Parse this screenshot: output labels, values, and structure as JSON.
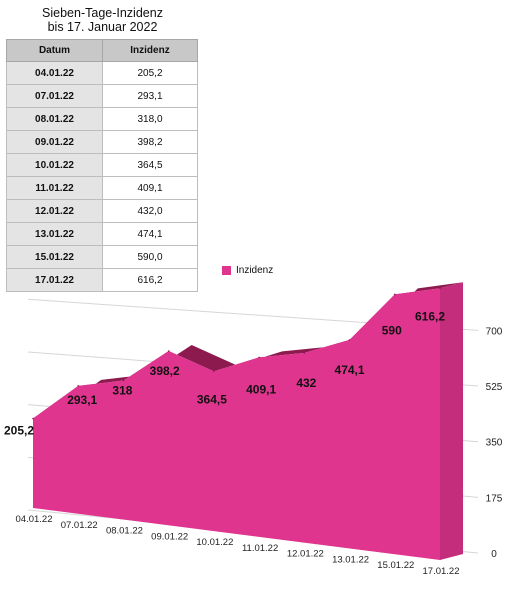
{
  "title_line1": "Sieben-Tage-Inzidenz",
  "title_line2": "bis 17. Januar 2022",
  "table": {
    "headers": [
      "Datum",
      "Inzidenz"
    ],
    "rows": [
      [
        "04.01.22",
        "205,2"
      ],
      [
        "07.01.22",
        "293,1"
      ],
      [
        "08.01.22",
        "318,0"
      ],
      [
        "09.01.22",
        "398,2"
      ],
      [
        "10.01.22",
        "364,5"
      ],
      [
        "11.01.22",
        "409,1"
      ],
      [
        "12.01.22",
        "432,0"
      ],
      [
        "13.01.22",
        "474,1"
      ],
      [
        "15.01.22",
        "590,0"
      ],
      [
        "17.01.22",
        "616,2"
      ]
    ]
  },
  "colors": {
    "front": "#e0358f",
    "top": "#8d1a4f",
    "legend": "#e0358f"
  },
  "chart_data": {
    "type": "area",
    "title": "",
    "categories": [
      "04.01.22",
      "07.01.22",
      "08.01.22",
      "09.01.22",
      "10.01.22",
      "11.01.22",
      "12.01.22",
      "13.01.22",
      "15.01.22",
      "17.01.22"
    ],
    "series": [
      {
        "name": "Inzidenz",
        "values": [
          205.2,
          293.1,
          318,
          398.2,
          364.5,
          409.1,
          432,
          474.1,
          590,
          616.2
        ],
        "labels": [
          "205,2",
          "293,1",
          "318",
          "398,2",
          "364,5",
          "409,1",
          "432",
          "474,1",
          "590",
          "616,2"
        ]
      }
    ],
    "yticks": [
      0,
      175,
      350,
      525,
      700
    ],
    "ytick_labels": [
      "0",
      "175",
      "350",
      "525",
      "700"
    ],
    "ylim": [
      0,
      700
    ],
    "grid": true,
    "legend_position": "top"
  }
}
